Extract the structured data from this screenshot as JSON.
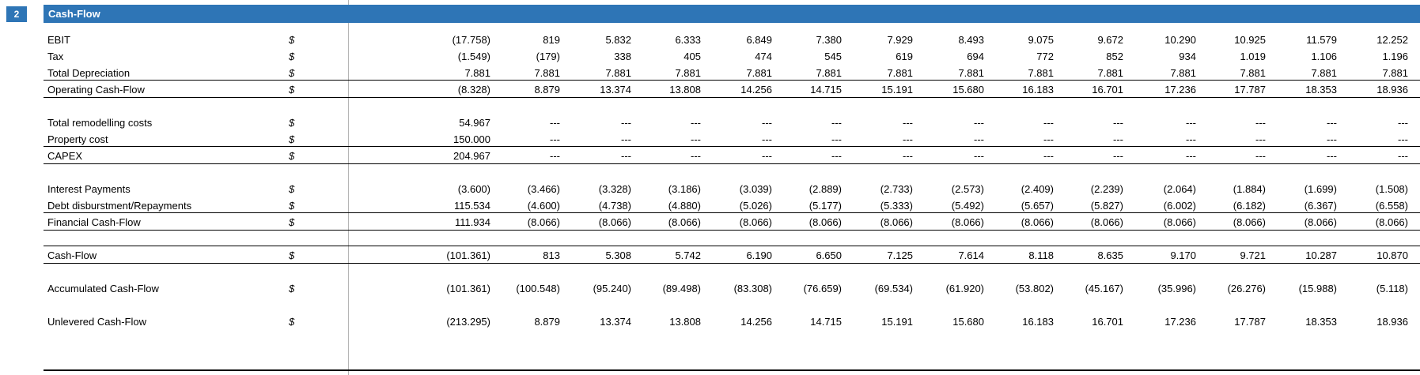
{
  "section": {
    "number": "2",
    "title": "Cash-Flow"
  },
  "currency": "$",
  "rows": [
    {
      "label": "EBIT",
      "values": [
        "(17.758)",
        "819",
        "5.832",
        "6.333",
        "6.849",
        "7.380",
        "7.929",
        "8.493",
        "9.075",
        "9.672",
        "10.290",
        "10.925",
        "11.579",
        "12.252"
      ]
    },
    {
      "label": "Tax",
      "values": [
        "(1.549)",
        "(179)",
        "338",
        "405",
        "474",
        "545",
        "619",
        "694",
        "772",
        "852",
        "934",
        "1.019",
        "1.106",
        "1.196"
      ]
    },
    {
      "label": "Total Depreciation",
      "values": [
        "7.881",
        "7.881",
        "7.881",
        "7.881",
        "7.881",
        "7.881",
        "7.881",
        "7.881",
        "7.881",
        "7.881",
        "7.881",
        "7.881",
        "7.881",
        "7.881"
      ]
    },
    {
      "label": "Operating Cash-Flow",
      "values": [
        "(8.328)",
        "8.879",
        "13.374",
        "13.808",
        "14.256",
        "14.715",
        "15.191",
        "15.680",
        "16.183",
        "16.701",
        "17.236",
        "17.787",
        "18.353",
        "18.936"
      ]
    },
    {
      "label": "Total remodelling costs",
      "values": [
        "54.967",
        "---",
        "---",
        "---",
        "---",
        "---",
        "---",
        "---",
        "---",
        "---",
        "---",
        "---",
        "---",
        "---"
      ]
    },
    {
      "label": "Property cost",
      "values": [
        "150.000",
        "---",
        "---",
        "---",
        "---",
        "---",
        "---",
        "---",
        "---",
        "---",
        "---",
        "---",
        "---",
        "---"
      ]
    },
    {
      "label": "CAPEX",
      "values": [
        "204.967",
        "---",
        "---",
        "---",
        "---",
        "---",
        "---",
        "---",
        "---",
        "---",
        "---",
        "---",
        "---",
        "---"
      ]
    },
    {
      "label": "Interest Payments",
      "values": [
        "(3.600)",
        "(3.466)",
        "(3.328)",
        "(3.186)",
        "(3.039)",
        "(2.889)",
        "(2.733)",
        "(2.573)",
        "(2.409)",
        "(2.239)",
        "(2.064)",
        "(1.884)",
        "(1.699)",
        "(1.508)"
      ]
    },
    {
      "label": "Debt disburstment/Repayments",
      "values": [
        "115.534",
        "(4.600)",
        "(4.738)",
        "(4.880)",
        "(5.026)",
        "(5.177)",
        "(5.333)",
        "(5.492)",
        "(5.657)",
        "(5.827)",
        "(6.002)",
        "(6.182)",
        "(6.367)",
        "(6.558)"
      ]
    },
    {
      "label": "Financial Cash-Flow",
      "values": [
        "111.934",
        "(8.066)",
        "(8.066)",
        "(8.066)",
        "(8.066)",
        "(8.066)",
        "(8.066)",
        "(8.066)",
        "(8.066)",
        "(8.066)",
        "(8.066)",
        "(8.066)",
        "(8.066)",
        "(8.066)"
      ]
    },
    {
      "label": "Cash-Flow",
      "values": [
        "(101.361)",
        "813",
        "5.308",
        "5.742",
        "6.190",
        "6.650",
        "7.125",
        "7.614",
        "8.118",
        "8.635",
        "9.170",
        "9.721",
        "10.287",
        "10.870"
      ]
    },
    {
      "label": "Accumulated Cash-Flow",
      "values": [
        "(101.361)",
        "(100.548)",
        "(95.240)",
        "(89.498)",
        "(83.308)",
        "(76.659)",
        "(69.534)",
        "(61.920)",
        "(53.802)",
        "(45.167)",
        "(35.996)",
        "(26.276)",
        "(15.988)",
        "(5.118)"
      ]
    },
    {
      "label": "Unlevered Cash-Flow",
      "values": [
        "(213.295)",
        "8.879",
        "13.374",
        "13.808",
        "14.256",
        "14.715",
        "15.191",
        "15.680",
        "16.183",
        "16.701",
        "17.236",
        "17.787",
        "18.353",
        "18.936"
      ]
    }
  ]
}
